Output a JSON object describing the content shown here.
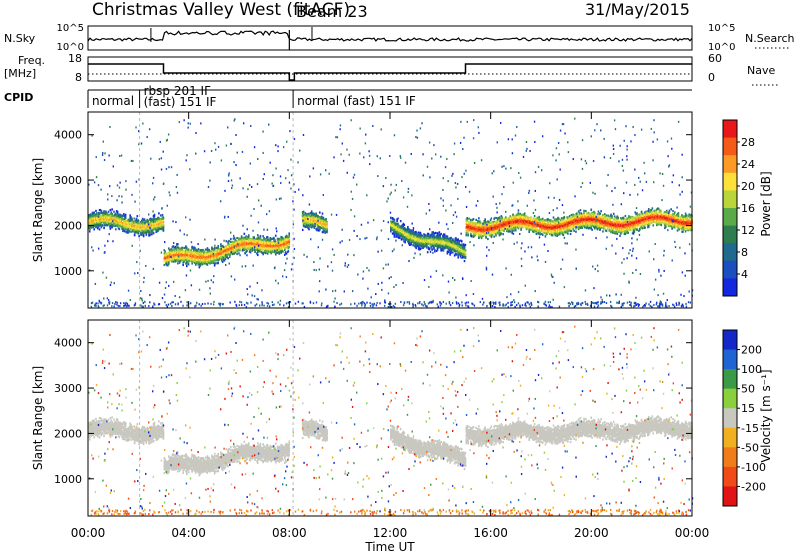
{
  "header": {
    "title": "Christmas Valley West (fitACF)",
    "beam": "Beam 23",
    "date": "31/May/2015"
  },
  "top_panels": {
    "nsky": {
      "left_label": "N.Sky",
      "right_label": "N.Search",
      "ticks_left": [
        "10^5",
        "10^0"
      ],
      "ticks_right": [
        "10^5",
        "10^0"
      ]
    },
    "freq": {
      "left_label": "Freq.",
      "left_unit": "[MHz]",
      "right_label": "Nave",
      "ticks_left": [
        "18",
        "8"
      ],
      "ticks_right": [
        "60",
        "0"
      ]
    },
    "cpid": {
      "label": "CPID",
      "modes": [
        {
          "text": "normal",
          "start_h": 0.0
        },
        {
          "text": "rbsp 201 IF",
          "start_h": 2.05,
          "row": "upper"
        },
        {
          "text": "(fast) 151 IF",
          "start_h": 2.05,
          "row": "lower"
        },
        {
          "text": "normal (fast) 151 IF",
          "start_h": 8.15
        }
      ]
    }
  },
  "chart_data": [
    {
      "type": "heatmap",
      "name": "Power",
      "ylabel": "Slant Range [km]",
      "ylim": [
        180,
        4500
      ],
      "yticks": [
        1000,
        2000,
        3000,
        4000
      ],
      "xlim_hours": [
        0,
        24
      ],
      "colorbar": {
        "label": "Power [dB]",
        "ticks": [
          "28",
          "24",
          "20",
          "16",
          "12",
          "8",
          "4"
        ],
        "colors": [
          "#e8181a",
          "#f45a18",
          "#fb9a24",
          "#fde13a",
          "#b9d53a",
          "#5aaa48",
          "#2e7d4f",
          "#216a8f",
          "#1b4fbf",
          "#1428e0"
        ]
      },
      "echo_bands": [
        {
          "start_h": 0.0,
          "end_h": 3.0,
          "center_km_start": 2100,
          "center_km_end": 2050,
          "peak_db": 20
        },
        {
          "start_h": 3.0,
          "end_h": 8.0,
          "center_km_start": 1250,
          "center_km_end": 1700,
          "peak_db": 24
        },
        {
          "start_h": 8.5,
          "end_h": 9.5,
          "center_km_start": 2100,
          "center_km_end": 2000,
          "peak_db": 20
        },
        {
          "start_h": 12.0,
          "end_h": 15.0,
          "center_km_start": 2000,
          "center_km_end": 1400,
          "peak_db": 16
        },
        {
          "start_h": 15.0,
          "end_h": 24.0,
          "center_km_start": 2000,
          "center_km_end": 2150,
          "peak_db": 28
        }
      ]
    },
    {
      "type": "heatmap",
      "name": "Velocity",
      "ylabel": "Slant Range [km]",
      "ylim": [
        180,
        4500
      ],
      "yticks": [
        1000,
        2000,
        3000,
        4000
      ],
      "xlim_hours": [
        0,
        24
      ],
      "colorbar": {
        "label": "Velocity [m s⁻¹]",
        "ticks": [
          "200",
          "100",
          "50",
          "15",
          "-15",
          "-50",
          "-100",
          "-200"
        ],
        "colors": [
          "#1428c8",
          "#1e64d2",
          "#3a9a46",
          "#8ad03c",
          "#c8c8c0",
          "#f0b022",
          "#f07c1a",
          "#f04a18",
          "#e01414"
        ]
      },
      "ground_scatter_color": "#c8c8c0"
    }
  ],
  "x_axis": {
    "label": "Time UT",
    "ticks": [
      "00:00",
      "04:00",
      "08:00",
      "12:00",
      "16:00",
      "20:00",
      "00:00"
    ]
  }
}
